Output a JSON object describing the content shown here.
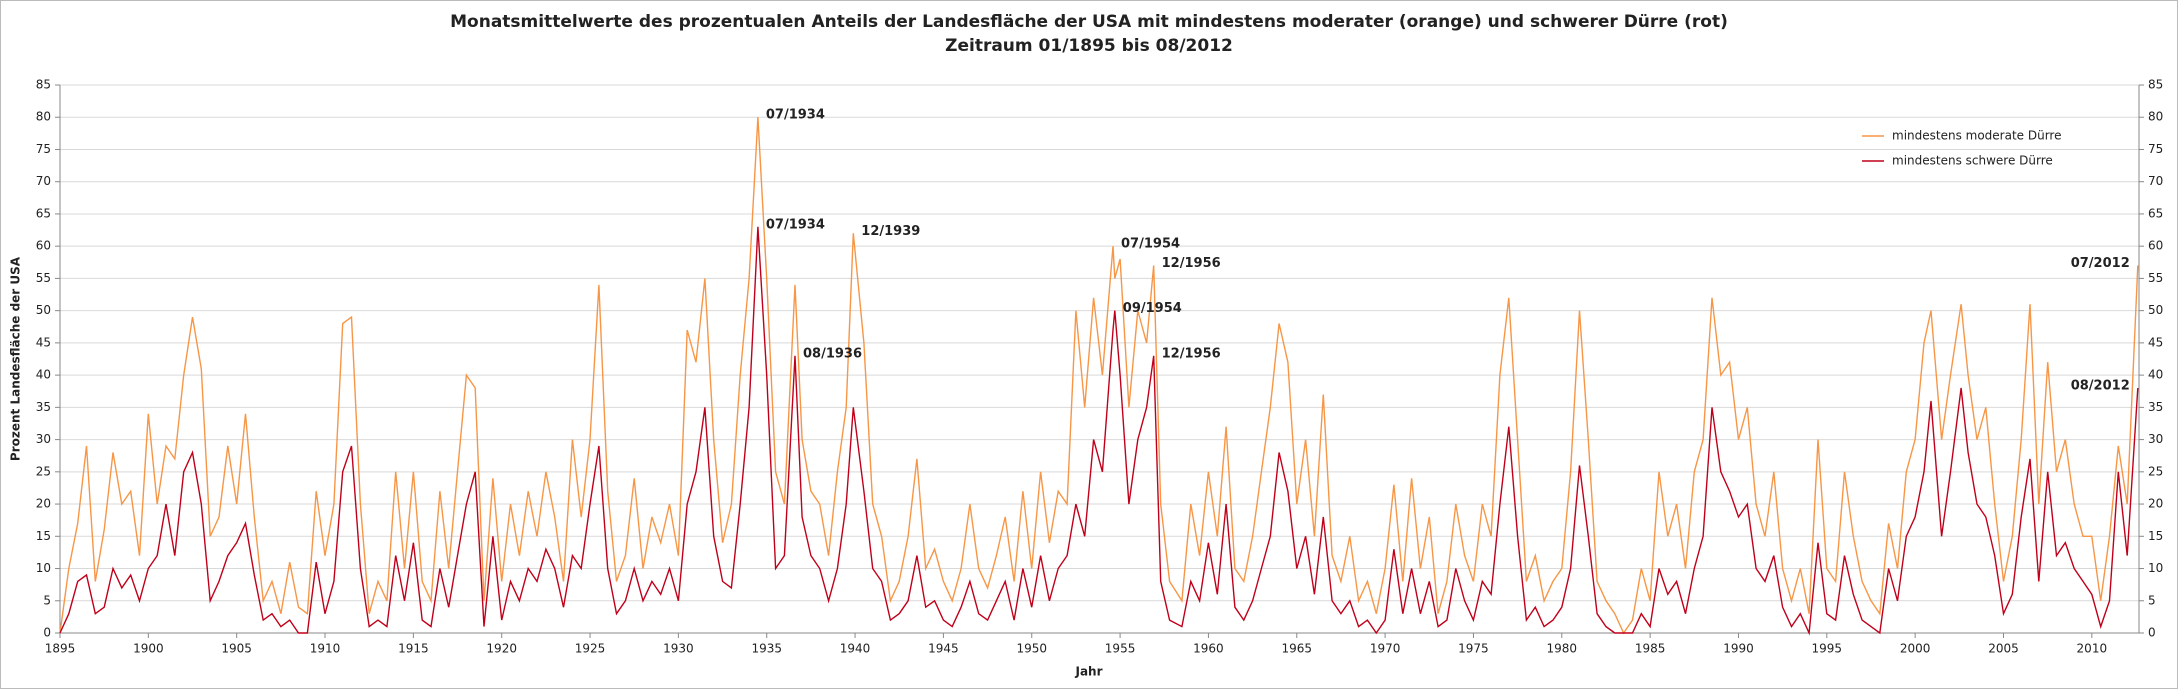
{
  "chart_data": {
    "type": "line",
    "title": "Monatsmittelwerte des prozentualen Anteils der Landesfläche der USA mit mindestens moderater (orange) und schwerer Dürre (rot)",
    "subtitle": "Zeitraum 01/1895 bis 08/2012",
    "x_label": "Jahr",
    "y_label": "Prozent Landesfläche der USA",
    "xlim": [
      1895,
      2012.67
    ],
    "xticks": [
      1895,
      1900,
      1905,
      1910,
      1915,
      1920,
      1925,
      1930,
      1935,
      1940,
      1945,
      1950,
      1955,
      1960,
      1965,
      1970,
      1975,
      1980,
      1985,
      1990,
      1995,
      2000,
      2005,
      2010
    ],
    "ylim": [
      0,
      85
    ],
    "yticks": [
      0,
      5,
      10,
      15,
      20,
      25,
      30,
      35,
      40,
      45,
      50,
      55,
      60,
      65,
      70,
      75,
      80,
      85
    ],
    "y2lim": [
      0,
      85
    ],
    "y2ticks": [
      0,
      5,
      10,
      15,
      20,
      25,
      30,
      35,
      40,
      45,
      50,
      55,
      60,
      65,
      70,
      75,
      80,
      85
    ],
    "grid": true,
    "legend": "upper right",
    "x": [
      1895.0,
      1895.5,
      1896.0,
      1896.5,
      1897.0,
      1897.5,
      1898.0,
      1898.5,
      1899.0,
      1899.5,
      1900.0,
      1900.5,
      1901.0,
      1901.5,
      1902.0,
      1902.5,
      1903.0,
      1903.5,
      1904.0,
      1904.5,
      1905.0,
      1905.5,
      1906.0,
      1906.5,
      1907.0,
      1907.5,
      1908.0,
      1908.5,
      1909.0,
      1909.5,
      1910.0,
      1910.5,
      1911.0,
      1911.5,
      1912.0,
      1912.5,
      1913.0,
      1913.5,
      1914.0,
      1914.5,
      1915.0,
      1915.5,
      1916.0,
      1916.5,
      1917.0,
      1917.5,
      1918.0,
      1918.5,
      1919.0,
      1919.5,
      1920.0,
      1920.5,
      1921.0,
      1921.5,
      1922.0,
      1922.5,
      1923.0,
      1923.5,
      1924.0,
      1924.5,
      1925.0,
      1925.5,
      1926.0,
      1926.5,
      1927.0,
      1927.5,
      1928.0,
      1928.5,
      1929.0,
      1929.5,
      1930.0,
      1930.5,
      1931.0,
      1931.5,
      1932.0,
      1932.5,
      1933.0,
      1933.5,
      1934.0,
      1934.5,
      1935.0,
      1935.5,
      1936.0,
      1936.6,
      1937.0,
      1937.5,
      1938.0,
      1938.5,
      1939.0,
      1939.5,
      1939.9,
      1940.5,
      1941.0,
      1941.5,
      1942.0,
      1942.5,
      1943.0,
      1943.5,
      1944.0,
      1944.5,
      1945.0,
      1945.5,
      1946.0,
      1946.5,
      1947.0,
      1947.5,
      1948.0,
      1948.5,
      1949.0,
      1949.5,
      1950.0,
      1950.5,
      1951.0,
      1951.5,
      1952.0,
      1952.5,
      1953.0,
      1953.5,
      1954.0,
      1954.6,
      1954.7,
      1955.0,
      1955.5,
      1956.0,
      1956.5,
      1956.9,
      1957.3,
      1957.8,
      1958.5,
      1959.0,
      1959.5,
      1960.0,
      1960.5,
      1961.0,
      1961.5,
      1962.0,
      1962.5,
      1963.0,
      1963.5,
      1964.0,
      1964.5,
      1965.0,
      1965.5,
      1966.0,
      1966.5,
      1967.0,
      1967.5,
      1968.0,
      1968.5,
      1969.0,
      1969.5,
      1970.0,
      1970.5,
      1971.0,
      1971.5,
      1972.0,
      1972.5,
      1973.0,
      1973.5,
      1974.0,
      1974.5,
      1975.0,
      1975.5,
      1976.0,
      1976.5,
      1977.0,
      1977.5,
      1978.0,
      1978.5,
      1979.0,
      1979.5,
      1980.0,
      1980.5,
      1981.0,
      1981.5,
      1982.0,
      1982.5,
      1983.0,
      1983.5,
      1984.0,
      1984.5,
      1985.0,
      1985.5,
      1986.0,
      1986.5,
      1987.0,
      1987.5,
      1988.0,
      1988.5,
      1989.0,
      1989.5,
      1990.0,
      1990.5,
      1991.0,
      1991.5,
      1992.0,
      1992.5,
      1993.0,
      1993.5,
      1994.0,
      1994.5,
      1995.0,
      1995.5,
      1996.0,
      1996.5,
      1997.0,
      1997.5,
      1998.0,
      1998.5,
      1999.0,
      1999.5,
      2000.0,
      2000.5,
      2000.9,
      2001.5,
      2002.0,
      2002.6,
      2003.0,
      2003.5,
      2004.0,
      2004.5,
      2005.0,
      2005.5,
      2006.0,
      2006.5,
      2007.0,
      2007.5,
      2008.0,
      2008.5,
      2009.0,
      2009.5,
      2010.0,
      2010.5,
      2011.0,
      2011.5,
      2012.0,
      2012.6
    ],
    "series": [
      {
        "name": "mindestens moderate Dürre",
        "color": "#f79646",
        "values": [
          0,
          10,
          17,
          29,
          8,
          16,
          28,
          20,
          22,
          12,
          34,
          20,
          29,
          27,
          40,
          49,
          41,
          15,
          18,
          29,
          20,
          34,
          18,
          5,
          8,
          3,
          11,
          4,
          3,
          22,
          12,
          20,
          48,
          49,
          20,
          3,
          8,
          5,
          25,
          10,
          25,
          8,
          5,
          22,
          10,
          25,
          40,
          38,
          5,
          24,
          8,
          20,
          12,
          22,
          15,
          25,
          18,
          8,
          30,
          18,
          30,
          54,
          22,
          8,
          12,
          24,
          10,
          18,
          14,
          20,
          12,
          47,
          42,
          55,
          30,
          14,
          20,
          40,
          55,
          80,
          55,
          25,
          20,
          54,
          30,
          22,
          20,
          12,
          25,
          35,
          62,
          45,
          20,
          15,
          5,
          8,
          15,
          27,
          10,
          13,
          8,
          5,
          10,
          20,
          10,
          7,
          12,
          18,
          8,
          22,
          10,
          25,
          14,
          22,
          20,
          50,
          35,
          52,
          40,
          60,
          55,
          58,
          35,
          50,
          45,
          57,
          20,
          8,
          5,
          20,
          12,
          25,
          15,
          32,
          10,
          8,
          15,
          25,
          35,
          48,
          42,
          20,
          30,
          15,
          37,
          12,
          8,
          15,
          5,
          8,
          3,
          10,
          23,
          8,
          24,
          10,
          18,
          3,
          8,
          20,
          12,
          8,
          20,
          15,
          40,
          52,
          30,
          8,
          12,
          5,
          8,
          10,
          25,
          50,
          30,
          8,
          5,
          3,
          0,
          2,
          10,
          5,
          25,
          15,
          20,
          10,
          25,
          30,
          52,
          40,
          42,
          30,
          35,
          20,
          15,
          25,
          10,
          5,
          10,
          3,
          30,
          10,
          8,
          25,
          15,
          8,
          5,
          3,
          17,
          10,
          25,
          30,
          45,
          50,
          30,
          40,
          51,
          40,
          30,
          35,
          20,
          8,
          15,
          30,
          51,
          20,
          42,
          25,
          30,
          20,
          15,
          15,
          5,
          15,
          29,
          20,
          57
        ]
      },
      {
        "name": "mindestens schwere Dürre",
        "color": "#c0001a",
        "values": [
          0,
          3,
          8,
          9,
          3,
          4,
          10,
          7,
          9,
          5,
          10,
          12,
          20,
          12,
          25,
          28,
          20,
          5,
          8,
          12,
          14,
          17,
          9,
          2,
          3,
          1,
          2,
          0,
          0,
          11,
          3,
          8,
          25,
          29,
          10,
          1,
          2,
          1,
          12,
          5,
          14,
          2,
          1,
          10,
          4,
          12,
          20,
          25,
          1,
          15,
          2,
          8,
          5,
          10,
          8,
          13,
          10,
          4,
          12,
          10,
          20,
          29,
          10,
          3,
          5,
          10,
          5,
          8,
          6,
          10,
          5,
          20,
          25,
          35,
          15,
          8,
          7,
          20,
          35,
          63,
          40,
          10,
          12,
          43,
          18,
          12,
          10,
          5,
          10,
          20,
          35,
          22,
          10,
          8,
          2,
          3,
          5,
          12,
          4,
          5,
          2,
          1,
          4,
          8,
          3,
          2,
          5,
          8,
          2,
          10,
          4,
          12,
          5,
          10,
          12,
          20,
          15,
          30,
          25,
          47,
          50,
          40,
          20,
          30,
          35,
          43,
          8,
          2,
          1,
          8,
          5,
          14,
          6,
          20,
          4,
          2,
          5,
          10,
          15,
          28,
          22,
          10,
          15,
          6,
          18,
          5,
          3,
          5,
          1,
          2,
          0,
          2,
          13,
          3,
          10,
          3,
          8,
          1,
          2,
          10,
          5,
          2,
          8,
          6,
          20,
          32,
          15,
          2,
          4,
          1,
          2,
          4,
          10,
          26,
          15,
          3,
          1,
          0,
          0,
          0,
          3,
          1,
          10,
          6,
          8,
          3,
          10,
          15,
          35,
          25,
          22,
          18,
          20,
          10,
          8,
          12,
          4,
          1,
          3,
          0,
          14,
          3,
          2,
          12,
          6,
          2,
          1,
          0,
          10,
          5,
          15,
          18,
          25,
          36,
          15,
          25,
          38,
          28,
          20,
          18,
          12,
          3,
          6,
          18,
          27,
          8,
          25,
          12,
          14,
          10,
          8,
          6,
          1,
          5,
          25,
          12,
          38
        ]
      }
    ],
    "annotations": [
      {
        "text": "07/1934",
        "x": 1934.5,
        "y": 80,
        "series": 0
      },
      {
        "text": "12/1939",
        "x": 1939.9,
        "y": 62,
        "series": 0
      },
      {
        "text": "07/1954",
        "x": 1954.6,
        "y": 60,
        "series": 0
      },
      {
        "text": "12/1956",
        "x": 1956.9,
        "y": 57,
        "series": 0
      },
      {
        "text": "07/2012",
        "x": 2012.6,
        "y": 57,
        "series": 0
      },
      {
        "text": "07/1934",
        "x": 1934.5,
        "y": 63,
        "series": 1
      },
      {
        "text": "08/1936",
        "x": 1936.6,
        "y": 43,
        "series": 1
      },
      {
        "text": "09/1954",
        "x": 1954.7,
        "y": 50,
        "series": 1
      },
      {
        "text": "12/1956",
        "x": 1956.9,
        "y": 43,
        "series": 1
      },
      {
        "text": "08/2012",
        "x": 2012.6,
        "y": 38,
        "series": 1
      }
    ]
  }
}
